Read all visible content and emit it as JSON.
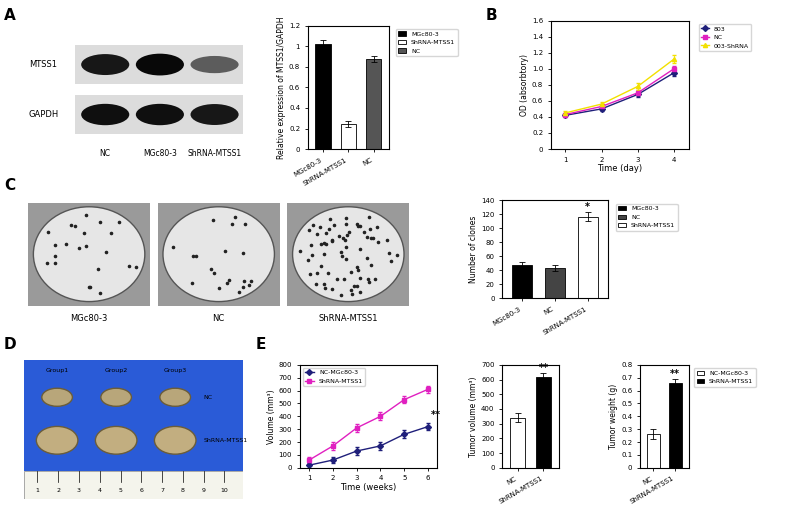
{
  "panel_labels": [
    "A",
    "B",
    "C",
    "D",
    "E"
  ],
  "blot": {
    "rows": [
      "MTSS1",
      "GAPDH"
    ],
    "lanes": [
      "NC",
      "MGc80-3",
      "ShRNA-MTSS1"
    ]
  },
  "plates": [
    "MGc80-3",
    "NC",
    "ShRNA-MTSS1"
  ],
  "tumor_photo": {
    "groups": [
      "Group1",
      "Group2",
      "Group3"
    ],
    "rows": [
      "NC",
      "ShRNA-MTSS1"
    ],
    "ruler": [
      "1",
      "2",
      "3",
      "4",
      "5",
      "6",
      "7",
      "8",
      "9",
      "10"
    ]
  },
  "chart_data": [
    {
      "type": "bar",
      "categories": [
        "MGc80-3",
        "ShRNA-MTSS1",
        "NC"
      ],
      "values": [
        1.02,
        0.24,
        0.88
      ],
      "errors": [
        0.04,
        0.03,
        0.03
      ],
      "colors": [
        "#000000",
        "#ffffff",
        "#555555"
      ],
      "ylabel": "Relative expression of MTSS1/GAPDH",
      "ylim": [
        0,
        1.2
      ],
      "yticks": [
        0,
        0.2,
        0.4,
        0.6,
        0.8,
        1,
        1.2
      ],
      "legend": "upper left"
    },
    {
      "type": "line",
      "x": [
        1,
        2,
        3,
        4
      ],
      "xlim": [
        0.6,
        4.4
      ],
      "xticks": [
        1,
        2,
        3,
        4
      ],
      "xlabel": "Time (day)",
      "ylabel": "OD (absorbtory)",
      "ylim": [
        0,
        1.6
      ],
      "yticks": [
        0,
        0.2,
        0.4,
        0.6,
        0.8,
        {
          "value": 1,
          "label": "1.0"
        },
        1.2,
        1.4,
        1.6
      ],
      "legend": "upper left",
      "series": [
        {
          "name": "803",
          "color": "#1f1f7a",
          "marker": "diamond",
          "line_style": "solid",
          "values": [
            0.42,
            0.5,
            0.68,
            0.95
          ],
          "errors": [
            0.02,
            0.02,
            0.03,
            0.04
          ]
        },
        {
          "name": "NC",
          "color": "#e020c0",
          "marker": "square",
          "line_style": "solid",
          "values": [
            0.43,
            0.53,
            0.7,
            1.0
          ],
          "errors": [
            0.02,
            0.02,
            0.03,
            0.04
          ]
        },
        {
          "name": "003-ShRNA",
          "color": "#f2e000",
          "marker": "triangle",
          "line_style": "solid",
          "values": [
            0.45,
            0.56,
            0.78,
            1.12
          ],
          "errors": [
            0.02,
            0.03,
            0.04,
            0.05
          ]
        }
      ]
    },
    {
      "type": "bar",
      "categories": [
        "MGc80-3",
        "NC",
        "ShRNA-MTSS1"
      ],
      "values": [
        47,
        43,
        117
      ],
      "errors": [
        5,
        4,
        6
      ],
      "colors": [
        "#000000",
        "#444444",
        "#ffffff"
      ],
      "ylabel": "Number of clones",
      "ylim": [
        0,
        140
      ],
      "yticks": [
        0,
        20,
        40,
        60,
        80,
        100,
        120,
        140
      ],
      "legend": "upper left",
      "annotations": [
        {
          "text": "*",
          "category": "ShRNA-MTSS1"
        }
      ]
    },
    {
      "type": "line",
      "x": [
        1,
        2,
        3,
        4,
        5,
        6
      ],
      "xlim": [
        0.6,
        6.4
      ],
      "xticks": [
        1,
        2,
        3,
        4,
        5,
        6
      ],
      "xlabel": "Time (weeks)",
      "ylabel": "Volume (mm³)",
      "ylim": [
        0,
        800
      ],
      "yticks": [
        0,
        100,
        200,
        300,
        400,
        500,
        600,
        700,
        800
      ],
      "legend": "upper left",
      "series": [
        {
          "name": "NC-MGc80-3",
          "color": "#1f1f7a",
          "marker": "diamond",
          "line_style": "solid",
          "values": [
            20,
            60,
            130,
            170,
            260,
            320
          ],
          "errors": [
            20,
            25,
            30,
            30,
            30,
            30
          ]
        },
        {
          "name": "ShRNA-MTSS1",
          "color": "#e020c0",
          "marker": "square",
          "line_style": "solid",
          "values": [
            60,
            170,
            310,
            400,
            530,
            610
          ],
          "errors": [
            25,
            30,
            30,
            30,
            30,
            30
          ]
        }
      ],
      "annotations": [
        {
          "text": "**",
          "x": 6,
          "series": "NC-MGc80-3"
        }
      ]
    },
    {
      "type": "bar",
      "categories": [
        "NC",
        "ShRNA-MTSS1"
      ],
      "values": [
        340,
        620
      ],
      "errors": [
        30,
        25
      ],
      "colors": [
        "#ffffff",
        "#000000"
      ],
      "ylabel": "Tumor volume (mm³)",
      "ylim": [
        0,
        700
      ],
      "yticks": [
        0,
        100,
        200,
        300,
        400,
        500,
        600,
        700
      ],
      "annotations": [
        {
          "text": "**",
          "category": "ShRNA-MTSS1"
        }
      ]
    },
    {
      "type": "bar",
      "categories": [
        "NC",
        "ShRNA-MTSS1"
      ],
      "ylabel": "Tumor weight (g)",
      "ylim": [
        0,
        0.8
      ],
      "yticks": [
        0,
        0.1,
        0.2,
        0.3,
        0.4,
        0.5,
        0.6,
        0.7,
        0.8
      ],
      "legend": "upper left",
      "series": [
        {
          "name": "NC-MGc80-3",
          "color": "#ffffff",
          "values": [
            0.26,
            null
          ],
          "errors": [
            0.04,
            null
          ]
        },
        {
          "name": "ShRNA-MTSS1",
          "color": "#000000",
          "values": [
            null,
            0.66
          ],
          "errors": [
            null,
            0.03
          ]
        }
      ],
      "annotations": [
        {
          "text": "**",
          "category": "ShRNA-MTSS1"
        }
      ]
    }
  ]
}
